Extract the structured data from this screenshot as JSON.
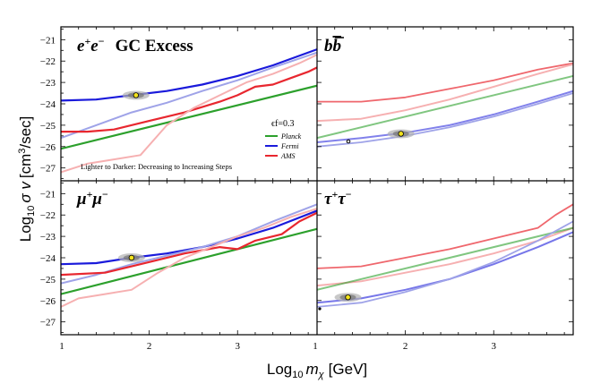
{
  "chart_data": {
    "type": "line",
    "xlabel": "Log10 mχ [GeV]",
    "ylabel": "Log10 σv [cm3/sec]",
    "xlabel_parts": {
      "pre": "Log",
      "sub": "10",
      "var": "m",
      "varsub": "χ",
      "post": "[GeV]"
    },
    "ylabel_parts": {
      "pre": "Log",
      "sub": "10",
      "var": "σ v",
      "post": "[cm",
      "sup": "3",
      "post2": "/sec]"
    },
    "xlim": [
      1,
      3.9
    ],
    "ylim": [
      -27.6,
      -20.4
    ],
    "y_ticks": [
      -21,
      -22,
      -23,
      -24,
      -25,
      -26,
      -27
    ],
    "x_ticks_left": [
      1,
      2,
      3
    ],
    "x_ticks_right": [
      1,
      2,
      3
    ],
    "legend": {
      "epsilon_label": "ϵf=0.3",
      "entries": [
        {
          "name": "Planck",
          "color": "#2ca02c"
        },
        {
          "name": "Fermi",
          "color": "#1a1adb"
        },
        {
          "name": "AMS",
          "color": "#e8272f"
        }
      ],
      "note": "Lighter to Darker: Decreasing to Increasing Steps"
    },
    "panels": [
      {
        "title": "e+e−   GC Excess",
        "best_fit": {
          "x": 1.85,
          "y": -23.6
        },
        "series": [
          {
            "name": "Fermi",
            "color": "#1a1adb",
            "width": 2.2,
            "opacity": 1.0,
            "x": [
              1.0,
              1.4,
              1.8,
              2.2,
              2.6,
              3.0,
              3.4,
              3.9
            ],
            "y": [
              -23.85,
              -23.8,
              -23.6,
              -23.4,
              -23.1,
              -22.7,
              -22.2,
              -21.45
            ]
          },
          {
            "name": "Fermi",
            "color": "#9fa3e8",
            "width": 2.0,
            "opacity": 1.0,
            "x": [
              1.0,
              1.4,
              1.8,
              2.2,
              2.6,
              3.0,
              3.4,
              3.9
            ],
            "y": [
              -25.6,
              -25.0,
              -24.4,
              -23.95,
              -23.4,
              -22.9,
              -22.3,
              -21.6
            ]
          },
          {
            "name": "Planck",
            "color": "#2ca02c",
            "width": 2.2,
            "opacity": 1.0,
            "x": [
              1.0,
              3.9
            ],
            "y": [
              -26.1,
              -23.15
            ]
          },
          {
            "name": "AMS",
            "color": "#e8272f",
            "width": 2.2,
            "opacity": 1.0,
            "x": [
              1.0,
              1.3,
              1.6,
              2.0,
              2.4,
              2.8,
              3.0,
              3.2,
              3.4,
              3.6,
              3.8,
              3.9
            ],
            "y": [
              -25.3,
              -25.3,
              -25.2,
              -24.8,
              -24.4,
              -23.9,
              -23.6,
              -23.2,
              -23.1,
              -22.8,
              -22.5,
              -22.3
            ]
          },
          {
            "name": "AMS",
            "color": "#f6b0b1",
            "width": 2.0,
            "opacity": 1.0,
            "x": [
              1.0,
              1.3,
              1.6,
              1.9,
              2.2,
              2.5,
              2.8,
              3.1,
              3.4,
              3.7,
              3.9
            ],
            "y": [
              -27.2,
              -26.8,
              -26.6,
              -26.4,
              -25.0,
              -24.2,
              -23.6,
              -23.0,
              -22.6,
              -22.1,
              -21.7
            ]
          }
        ]
      },
      {
        "title": "bb̄",
        "best_fit": {
          "x": 1.95,
          "y": -25.4
        },
        "series": [
          {
            "name": "AMS",
            "color": "#e8272f",
            "width": 1.8,
            "opacity": 0.7,
            "x": [
              1.0,
              1.5,
              2.0,
              2.5,
              3.0,
              3.5,
              3.9
            ],
            "y": [
              -23.9,
              -23.9,
              -23.7,
              -23.3,
              -22.9,
              -22.4,
              -22.1
            ]
          },
          {
            "name": "AMS",
            "color": "#f6b0b1",
            "width": 2.0,
            "opacity": 1.0,
            "x": [
              1.0,
              1.5,
              2.0,
              2.5,
              3.0,
              3.5,
              3.9
            ],
            "y": [
              -24.8,
              -24.7,
              -24.3,
              -23.8,
              -23.2,
              -22.6,
              -22.15
            ]
          },
          {
            "name": "Planck",
            "color": "#2ca02c",
            "width": 2.0,
            "opacity": 0.6,
            "x": [
              1.0,
              3.9
            ],
            "y": [
              -25.6,
              -22.7
            ]
          },
          {
            "name": "Fermi",
            "color": "#1a1adb",
            "width": 2.0,
            "opacity": 0.55,
            "x": [
              1.0,
              1.5,
              2.0,
              2.5,
              3.0,
              3.5,
              3.9
            ],
            "y": [
              -25.8,
              -25.6,
              -25.35,
              -25.0,
              -24.5,
              -23.9,
              -23.4
            ]
          },
          {
            "name": "Fermi",
            "color": "#9fa3e8",
            "width": 1.8,
            "opacity": 1.0,
            "x": [
              1.0,
              1.5,
              2.0,
              2.5,
              3.0,
              3.5,
              3.9
            ],
            "y": [
              -26.0,
              -25.8,
              -25.5,
              -25.1,
              -24.6,
              -24.0,
              -23.5
            ]
          }
        ]
      },
      {
        "title": "μ+μ−",
        "best_fit": {
          "x": 1.8,
          "y": -24.0
        },
        "series": [
          {
            "name": "Fermi",
            "color": "#1a1adb",
            "width": 2.2,
            "opacity": 1.0,
            "x": [
              1.0,
              1.4,
              1.8,
              2.2,
              2.6,
              3.0,
              3.4,
              3.9
            ],
            "y": [
              -24.3,
              -24.25,
              -24.0,
              -23.8,
              -23.5,
              -23.1,
              -22.6,
              -21.8
            ]
          },
          {
            "name": "Fermi",
            "color": "#9fa3e8",
            "width": 2.0,
            "opacity": 1.0,
            "x": [
              1.0,
              1.4,
              1.8,
              2.2,
              2.6,
              3.0,
              3.4,
              3.9
            ],
            "y": [
              -25.2,
              -24.8,
              -24.3,
              -23.9,
              -23.5,
              -23.0,
              -22.3,
              -21.5
            ]
          },
          {
            "name": "Planck",
            "color": "#2ca02c",
            "width": 2.2,
            "opacity": 1.0,
            "x": [
              1.0,
              3.9
            ],
            "y": [
              -25.7,
              -22.65
            ]
          },
          {
            "name": "AMS",
            "color": "#e8272f",
            "width": 2.2,
            "opacity": 1.0,
            "x": [
              1.0,
              1.5,
              2.0,
              2.4,
              2.8,
              3.0,
              3.2,
              3.5,
              3.7,
              3.9
            ],
            "y": [
              -24.8,
              -24.7,
              -24.2,
              -23.8,
              -23.5,
              -23.6,
              -23.2,
              -22.9,
              -22.3,
              -21.9
            ]
          },
          {
            "name": "AMS",
            "color": "#f6b0b1",
            "width": 2.0,
            "opacity": 1.0,
            "x": [
              1.0,
              1.2,
              1.5,
              1.8,
              2.1,
              2.4,
              2.7,
              3.0,
              3.3,
              3.6,
              3.9
            ],
            "y": [
              -26.3,
              -25.9,
              -25.7,
              -25.5,
              -24.7,
              -24.0,
              -23.5,
              -23.0,
              -22.6,
              -22.1,
              -21.7
            ]
          }
        ]
      },
      {
        "title": "τ+τ−",
        "best_fit": {
          "x": 1.35,
          "y": -25.85
        },
        "series": [
          {
            "name": "AMS",
            "color": "#e8272f",
            "width": 1.8,
            "opacity": 0.7,
            "x": [
              1.0,
              1.5,
              2.0,
              2.5,
              3.0,
              3.5,
              3.7,
              3.9
            ],
            "y": [
              -24.5,
              -24.4,
              -24.0,
              -23.6,
              -23.1,
              -22.6,
              -22.0,
              -21.5
            ]
          },
          {
            "name": "AMS",
            "color": "#f6b0b1",
            "width": 2.0,
            "opacity": 1.0,
            "x": [
              1.0,
              1.5,
              2.0,
              2.5,
              3.0,
              3.5,
              3.9
            ],
            "y": [
              -25.3,
              -25.1,
              -24.7,
              -24.3,
              -23.8,
              -23.2,
              -22.6
            ]
          },
          {
            "name": "Planck",
            "color": "#2ca02c",
            "width": 2.0,
            "opacity": 0.6,
            "x": [
              1.0,
              3.9
            ],
            "y": [
              -25.5,
              -22.6
            ]
          },
          {
            "name": "Fermi",
            "color": "#1a1adb",
            "width": 2.0,
            "opacity": 0.6,
            "x": [
              1.0,
              1.5,
              2.0,
              2.5,
              3.0,
              3.5,
              3.9
            ],
            "y": [
              -26.1,
              -25.9,
              -25.5,
              -25.0,
              -24.3,
              -23.5,
              -22.8
            ]
          },
          {
            "name": "Fermi",
            "color": "#9fa3e8",
            "width": 1.8,
            "opacity": 1.0,
            "x": [
              1.0,
              1.5,
              2.0,
              2.5,
              3.0,
              3.5,
              3.9
            ],
            "y": [
              -26.3,
              -26.1,
              -25.6,
              -25.0,
              -24.2,
              -23.2,
              -22.3
            ]
          }
        ]
      }
    ]
  }
}
